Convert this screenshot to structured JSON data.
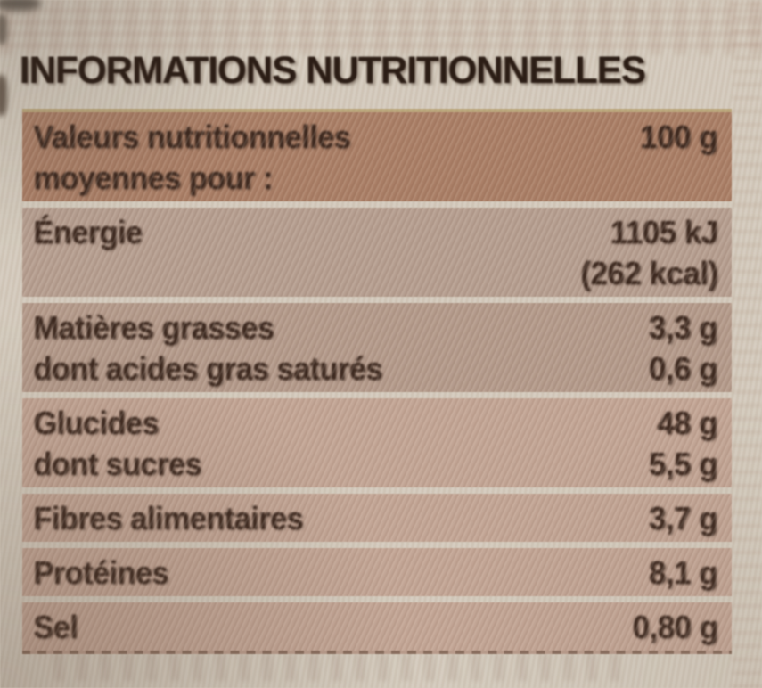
{
  "title": "INFORMATIONS NUTRITIONNELLES",
  "table": {
    "rows": [
      {
        "header": true,
        "labels": [
          "Valeurs nutritionnelles",
          "moyennes pour :"
        ],
        "values": [
          "100 g"
        ]
      },
      {
        "labels": [
          "Énergie"
        ],
        "values": [
          "1105 kJ",
          "(262 kcal)"
        ]
      },
      {
        "labels": [
          "Matières grasses",
          "dont acides gras saturés"
        ],
        "values": [
          "3,3 g",
          "0,6 g"
        ]
      },
      {
        "labels": [
          "Glucides",
          "dont sucres"
        ],
        "values": [
          "48 g",
          "5,5 g"
        ]
      },
      {
        "labels": [
          "Fibres alimentaires"
        ],
        "values": [
          "3,7 g"
        ]
      },
      {
        "labels": [
          "Protéines"
        ],
        "values": [
          "8,1 g"
        ]
      },
      {
        "labels": [
          "Sel"
        ],
        "values": [
          "0,80 g"
        ]
      }
    ]
  },
  "colors": {
    "page-bg": "#d4cbbd",
    "header-row-bg": "#a97e66",
    "row-bg": "#b59e90",
    "row-bg-lower": "#c2a595",
    "divider": "#cfc3b2",
    "ink": "#3a271e",
    "title-ink": "#2b1d15"
  }
}
